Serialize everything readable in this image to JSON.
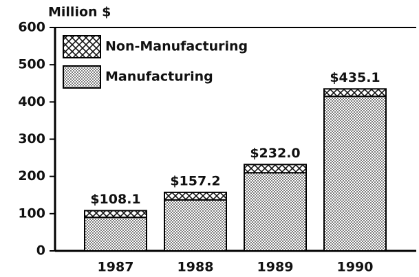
{
  "chart_data": {
    "type": "stacked_bar",
    "y_axis_label": "Million $",
    "categories": [
      "1987",
      "1988",
      "1989",
      "1990"
    ],
    "series": [
      {
        "name": "Manufacturing",
        "color": "#222222",
        "pattern": "dots",
        "values": [
          90,
          137,
          210,
          415
        ]
      },
      {
        "name": "Non-Manufacturing",
        "color": "#111111",
        "pattern": "crosshatch",
        "values": [
          18.1,
          20.2,
          22,
          20.1
        ]
      }
    ],
    "totals": [
      108.1,
      157.2,
      232.0,
      435.1
    ],
    "total_labels": [
      "$108.1",
      "$157.2",
      "$232.0",
      "$435.1"
    ],
    "ylim": [
      0,
      600
    ],
    "yticks": [
      0,
      100,
      200,
      300,
      400,
      500,
      600
    ],
    "legend": "upper left"
  }
}
